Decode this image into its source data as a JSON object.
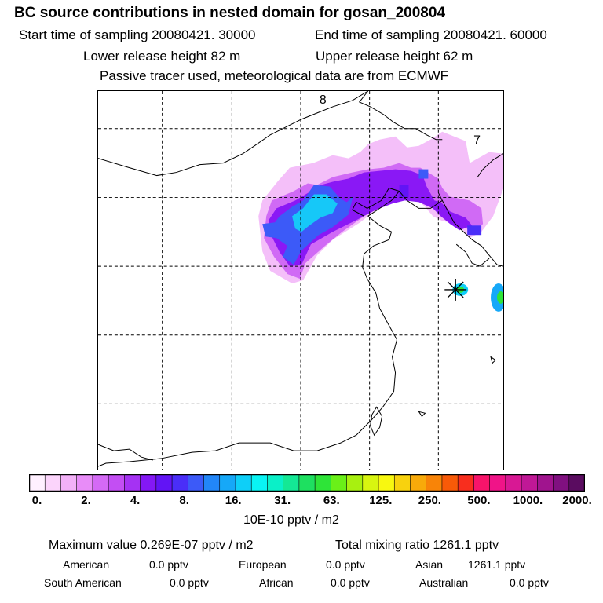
{
  "header": {
    "title": "BC  source contributions in nested domain for gosan_200804",
    "start_time": "Start time of sampling 20080421. 30000",
    "end_time": "End time of sampling 20080421. 60000",
    "lower_height": "Lower release height   82 m",
    "upper_height": "Upper release height   62 m",
    "info": "Passive tracer used, meteorological data are from ECMWF"
  },
  "map": {
    "labels": [
      "8",
      "7"
    ],
    "receptor": "gosan station marker"
  },
  "colorbar": {
    "colors": [
      "#fff0ff",
      "#fbd4fb",
      "#f3b1f8",
      "#e88cf8",
      "#d46af5",
      "#c34ef3",
      "#a532f3",
      "#8418f5",
      "#6214f5",
      "#4a2ef8",
      "#3c5af8",
      "#2286f8",
      "#16a8f8",
      "#0ecff8",
      "#09f4f4",
      "#0af0c8",
      "#14e895",
      "#1ee060",
      "#2ee438",
      "#6af018",
      "#a8f010",
      "#d8f510",
      "#f8f810",
      "#f8d20e",
      "#f8aa0a",
      "#f88408",
      "#f85a08",
      "#f82e1e",
      "#f8146a",
      "#f01488",
      "#d81894",
      "#c01896",
      "#a0148e",
      "#801080",
      "#5a0c60"
    ],
    "tick_labels": [
      "0.",
      "2.",
      "4.",
      "8.",
      "16.",
      "31.",
      "63.",
      "125.",
      "250.",
      "500.",
      "1000.",
      "2000."
    ],
    "units": "10E-10 pptv / m2"
  },
  "summary": {
    "max_value": "Maximum value  0.269E-07 pptv / m2",
    "total": "Total mixing ratio     1261.1 pptv",
    "american_label": "American",
    "american_value": "0.0 pptv",
    "european_label": "European",
    "european_value": "0.0 pptv",
    "asian_label": "Asian",
    "asian_value": "1261.1 pptv",
    "south_american_label": "South American",
    "south_american_value": "0.0 pptv",
    "african_label": "African",
    "african_value": "0.0 pptv",
    "australian_label": "Australian",
    "australian_value": "0.0 pptv"
  }
}
